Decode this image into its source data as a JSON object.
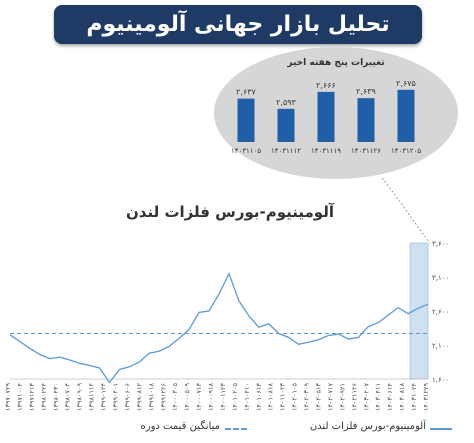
{
  "page": {
    "title": "تحلیل بازار جهانی آلومینیوم"
  },
  "chart_data": [
    {
      "type": "bar",
      "title": "تغییرات پنج هفته اخیر",
      "categories": [
        "۱۴۰۳۱۱۰۵",
        "۱۴۰۳۱۱۱۲",
        "۱۴۰۳۱۱۱۹",
        "۱۴۰۳۱۱۲۶",
        "۱۴۰۳۱۲۰۵"
      ],
      "values": [
        2637,
        2593,
        2666,
        2639,
        2675
      ],
      "value_labels": [
        "۲,۶۳۷",
        "۲,۵۹۳",
        "۲,۶۶۶",
        "۲,۶۳۹",
        "۲,۶۷۵"
      ],
      "bar_color": "#1f5fa8",
      "ylim": [
        2450,
        2700
      ]
    },
    {
      "type": "line",
      "title": "آلومینیوم-بورس فلزات لندن",
      "ylim": [
        1600,
        3600
      ],
      "y_ticks": [
        1600,
        2100,
        2600,
        3100,
        3600
      ],
      "y_tick_labels": [
        "۱,۶۰۰",
        "۲,۱۰۰",
        "۲,۶۰۰",
        "۳,۱۰۰",
        "۳,۶۰۰"
      ],
      "x_tick_labels": [
        "۱۳۹۷۰۷۲۹",
        "۱۳۹۷۱۰۰۴",
        "۱۳۹۷۱۲۱۳",
        "۱۳۹۸۰۲۲۴",
        "۱۳۹۸۰۴۳۰",
        "۱۳۹۸۰۷۰۴",
        "۱۳۹۸۰۹۰۹",
        "۱۳۹۸۱۱۱۴",
        "۱۳۹۹۰۱۲۴",
        "۱۳۹۹۰۴۰۱",
        "۱۳۹۹۰۶۰۶",
        "۱۳۹۹۰۸۱۲",
        "۱۳۹۹۱۰۱۸",
        "۱۳۹۹۱۲۲۶",
        "۱۴۰۰۰۳۰۵",
        "۱۴۰۰۰۵۰۹",
        "۱۴۰۰۰۷۱۳",
        "۱۴۰۰۰۹۱۸",
        "۱۴۰۰۱۱۲۳",
        "۱۴۰۱۰۲۰۵",
        "۱۴۰۱۰۴۱۰",
        "۱۴۰۱۰۶۱۳",
        "۱۴۰۱۰۸۱۸",
        "۱۴۰۱۱۰۲۳",
        "۱۴۰۲۰۱۰۵",
        "۱۴۰۲۰۳۰۹",
        "۱۴۰۲۰۵۱۳",
        "۱۴۰۲۰۷۱۷",
        "۱۴۰۲۰۹۲۱",
        "۱۴۰۲۱۱۲۶",
        "۱۴۰۳۰۲۰۷",
        "۱۴۰۳۰۴۱۱",
        "۱۴۰۳۰۶۱۴",
        "۱۴۰۳۰۸۱۸",
        "۱۴۰۳۱۰۲۴",
        "۱۴۰۳۱۲۲۹"
      ],
      "series": [
        {
          "name": "آلومینیوم-بورس فلزات لندن",
          "color": "#5b9bd5",
          "values": [
            2250,
            2150,
            2050,
            1960,
            1900,
            1920,
            1880,
            1830,
            1800,
            1760,
            1550,
            1740,
            1780,
            1850,
            1980,
            2010,
            2080,
            2200,
            2330,
            2580,
            2600,
            2850,
            3150,
            2750,
            2530,
            2360,
            2410,
            2270,
            2210,
            2110,
            2140,
            2180,
            2240,
            2260,
            2190,
            2210,
            2370,
            2430,
            2540,
            2650,
            2560,
            2640,
            2700
          ]
        },
        {
          "name": "میانگین قیمت دوره",
          "color": "#5b9bd5",
          "values": [
            2270
          ]
        }
      ],
      "highlight_range_labels": [
        "۱۴۰۳۱۰۲۴",
        "۱۴۰۳۱۲۲۹"
      ],
      "highlight_color": "#cfe0f3",
      "legend": [
        "آلومینیوم-بورس فلزات لندن",
        "میانگین قیمت دوره"
      ]
    }
  ]
}
